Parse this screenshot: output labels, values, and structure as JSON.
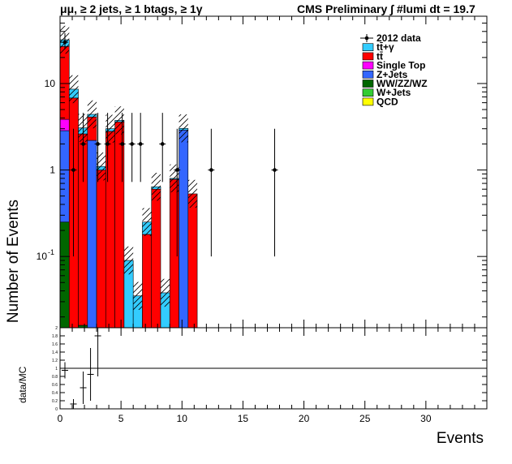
{
  "header": {
    "left_title": "μμ, ≥ 2 jets, ≥ 1 btags, ≥ 1γ",
    "right_title": "CMS Preliminary ∫ #lumi dt = 19.7"
  },
  "chart_data": [
    {
      "type": "bar",
      "stacked": true,
      "log_y": true,
      "ylabel": "Number of Events",
      "xlabel": "Events",
      "xlim": [
        0,
        35
      ],
      "ylim": [
        0.015,
        60
      ],
      "x_ticks": [
        0,
        5,
        10,
        15,
        20,
        25,
        30
      ],
      "y_ticks": [
        {
          "value": 0.1,
          "label": "10",
          "exp": "-1"
        },
        {
          "value": 1,
          "label": "1",
          "exp": ""
        },
        {
          "value": 10,
          "label": "10",
          "exp": ""
        }
      ],
      "bin_width": 0.75,
      "grid": false,
      "legend_position": "top-right",
      "series": [
        {
          "name": "QCD",
          "color": "#ffff00",
          "values": [
            0,
            0,
            0,
            0,
            0,
            0,
            0,
            0,
            0,
            0,
            0,
            0,
            0,
            0,
            0
          ]
        },
        {
          "name": "W+Jets",
          "color": "#33cc33",
          "values": [
            0,
            0,
            0,
            0,
            0,
            0,
            0,
            0,
            0,
            0,
            0,
            0,
            0,
            0,
            0
          ]
        },
        {
          "name": "WW/ZZ/WZ",
          "color": "#006600",
          "values": [
            0.25,
            0,
            0.016,
            0,
            0,
            0,
            0,
            0,
            0,
            0,
            0,
            0,
            0,
            0,
            0
          ]
        },
        {
          "name": "Z+Jets",
          "color": "#3366ff",
          "values": [
            2.6,
            0,
            0,
            2.2,
            0,
            0,
            0,
            0,
            0,
            0,
            0,
            0,
            0,
            2.9,
            0
          ]
        },
        {
          "name": "Single Top",
          "color": "#ff00ff",
          "values": [
            1.0,
            0,
            0,
            0,
            0,
            0,
            0,
            0,
            0,
            0,
            0,
            0,
            0,
            0,
            0
          ]
        },
        {
          "name": "tt̄",
          "color": "#ff0000",
          "values": [
            23,
            6.8,
            2.6,
            1.9,
            1.0,
            2.8,
            3.6,
            0,
            0,
            0.18,
            0.6,
            0,
            0.78,
            0,
            0.53
          ]
        },
        {
          "name": "tt̄+γ",
          "color": "#33ccff",
          "values": [
            5.2,
            1.8,
            0.45,
            0.3,
            0.1,
            0.2,
            0.15,
            0.09,
            0.035,
            0.07,
            0.04,
            0.038,
            0.02,
            0.13,
            0
          ]
        }
      ],
      "data": {
        "name": "2012 data",
        "points": [
          {
            "x": 0.4,
            "y": 30
          },
          {
            "x": 1.1,
            "y": 1
          },
          {
            "x": 1.9,
            "y": 2
          },
          {
            "x": 3.1,
            "y": 2
          },
          {
            "x": 3.9,
            "y": 2
          },
          {
            "x": 5.1,
            "y": 2
          },
          {
            "x": 5.9,
            "y": 2
          },
          {
            "x": 6.6,
            "y": 2
          },
          {
            "x": 8.4,
            "y": 2
          },
          {
            "x": 9.6,
            "y": 1
          },
          {
            "x": 12.4,
            "y": 1
          },
          {
            "x": 17.6,
            "y": 1
          }
        ]
      }
    },
    {
      "type": "scatter",
      "ylabel": "data/MC",
      "xlim": [
        0,
        35
      ],
      "ylim": [
        0,
        2
      ],
      "x_ticks": [
        0,
        5,
        10,
        15,
        20,
        25,
        30
      ],
      "y_ticks": [
        "0",
        "0.2",
        "0.4",
        "0.6",
        "0.8",
        "1",
        "1.2",
        "1.4",
        "1.6",
        "1.8",
        "2"
      ],
      "reference_line": 1,
      "points": [
        {
          "x": 0.4,
          "y": 0.95,
          "err": 0.2
        },
        {
          "x": 1.1,
          "y": 0.12,
          "err": 0.12
        },
        {
          "x": 1.9,
          "y": 0.52,
          "err": 0.4
        },
        {
          "x": 2.5,
          "y": 0.85,
          "err": 0.65
        },
        {
          "x": 3.1,
          "y": 1.8,
          "err": 1.0
        }
      ]
    }
  ]
}
